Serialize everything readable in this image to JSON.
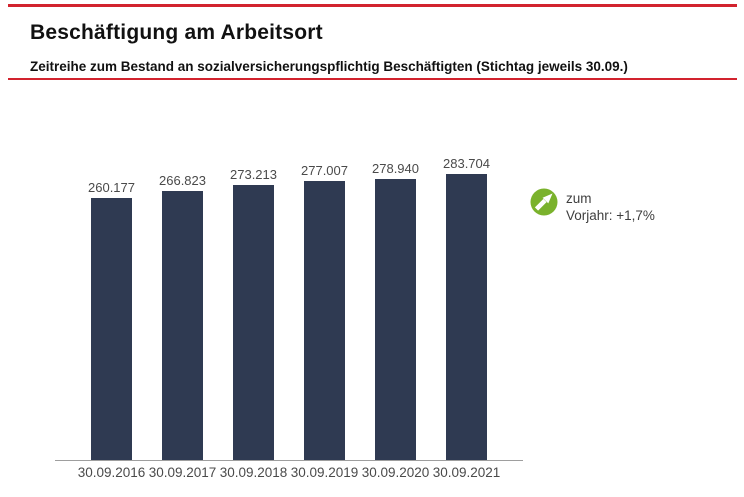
{
  "page": {
    "title": "Beschäftigung am Arbeitsort",
    "subtitle": "Zeitreihe zum Bestand an sozialversicherungspflichtig Beschäftigten (Stichtag jeweils 30.09.)"
  },
  "colors": {
    "accent_red": "#d2232e",
    "bar_navy": "#2f3a52",
    "icon_green": "#7ab22c",
    "label_gray": "#4a4a4a",
    "axis_gray": "#9e9e9e"
  },
  "chart_data": {
    "type": "bar",
    "categories": [
      "30.09.2016",
      "30.09.2017",
      "30.09.2018",
      "30.09.2019",
      "30.09.2020",
      "30.09.2021"
    ],
    "values": [
      260177,
      266823,
      273213,
      277007,
      278940,
      283704
    ],
    "value_labels": [
      "260.177",
      "266.823",
      "273.213",
      "277.007",
      "278.940",
      "283.704"
    ],
    "title": "Beschäftigung am Arbeitsort",
    "xlabel": "",
    "ylabel": "",
    "ylim": [
      0,
      290000
    ],
    "grid": false,
    "legend_position": "right",
    "legend": {
      "icon": "trend-up-arrow-icon",
      "lines": [
        "zum",
        "Vorjahr: +1,7%"
      ],
      "change_vs_prev_year": "+1,7%"
    }
  }
}
